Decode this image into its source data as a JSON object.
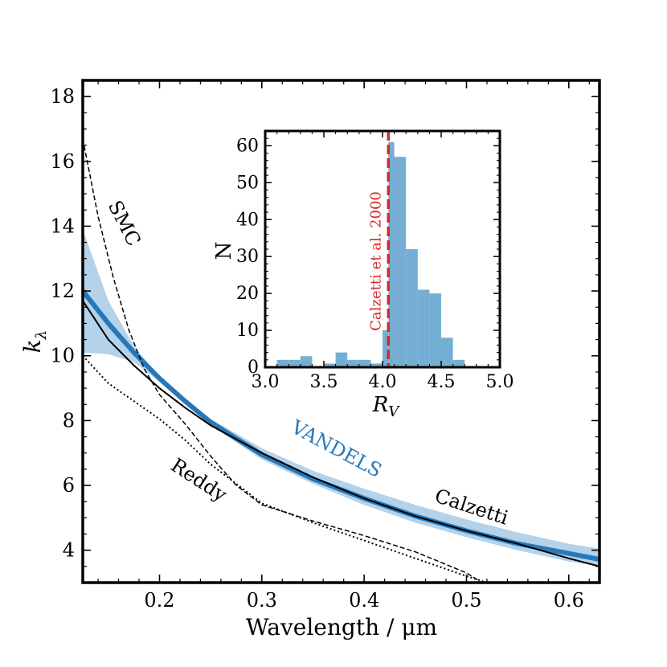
{
  "chart_data": [
    {
      "type": "line",
      "xlabel": "Wavelength / μm",
      "ylabel": "k_λ",
      "xlim": [
        0.125,
        0.63
      ],
      "ylim": [
        3.0,
        18.5
      ],
      "xticks": [
        0.2,
        0.3,
        0.4,
        0.5,
        0.6
      ],
      "xtick_labels": [
        "0.2",
        "0.3",
        "0.4",
        "0.5",
        "0.6"
      ],
      "yticks": [
        4,
        6,
        8,
        10,
        12,
        14,
        16,
        18
      ],
      "ytick_labels": [
        "4",
        "6",
        "8",
        "10",
        "12",
        "14",
        "16",
        "18"
      ],
      "colors": {
        "vandels": "#2878b8",
        "band": "#b4d2ea",
        "calzetti": "#000000",
        "smc": "#000000",
        "reddy": "#000000",
        "rv_marker": "#d62728",
        "hist": "#75aed3"
      },
      "series": [
        {
          "name": "VANDELS",
          "style": "thick-blue",
          "x": [
            0.125,
            0.15,
            0.175,
            0.2,
            0.225,
            0.25,
            0.3,
            0.35,
            0.4,
            0.45,
            0.5,
            0.55,
            0.6,
            0.63
          ],
          "y": [
            12.0,
            11.0,
            10.1,
            9.3,
            8.6,
            7.95,
            6.95,
            6.2,
            5.6,
            5.05,
            4.6,
            4.2,
            3.9,
            3.72
          ],
          "band_upper": [
            13.9,
            11.7,
            10.3,
            9.35,
            8.65,
            8.05,
            7.15,
            6.45,
            5.9,
            5.4,
            4.95,
            4.55,
            4.2,
            4.05
          ],
          "band_lower": [
            10.1,
            10.05,
            9.8,
            9.2,
            8.55,
            7.85,
            6.8,
            6.05,
            5.4,
            4.85,
            4.4,
            4.0,
            3.65,
            3.5
          ]
        },
        {
          "name": "Calzetti",
          "style": "solid-black",
          "x": [
            0.125,
            0.15,
            0.175,
            0.2,
            0.225,
            0.25,
            0.3,
            0.35,
            0.4,
            0.45,
            0.5,
            0.55,
            0.6,
            0.63
          ],
          "y": [
            11.7,
            10.5,
            9.7,
            9.0,
            8.4,
            7.85,
            7.0,
            6.25,
            5.6,
            5.05,
            4.6,
            4.2,
            3.75,
            3.5
          ]
        },
        {
          "name": "SMC",
          "style": "dashed-black",
          "x": [
            0.125,
            0.14,
            0.155,
            0.17,
            0.185,
            0.2,
            0.225,
            0.25,
            0.275,
            0.3,
            0.35,
            0.4,
            0.45,
            0.5,
            0.515
          ],
          "y": [
            16.7,
            14.3,
            12.4,
            10.8,
            9.6,
            8.8,
            7.9,
            6.9,
            6.0,
            5.4,
            4.9,
            4.45,
            3.95,
            3.3,
            3.0
          ]
        },
        {
          "name": "Reddy",
          "style": "dotted-black",
          "x": [
            0.125,
            0.15,
            0.175,
            0.2,
            0.225,
            0.25,
            0.3,
            0.35,
            0.4,
            0.45,
            0.5,
            0.52
          ],
          "y": [
            10.0,
            9.15,
            8.6,
            8.05,
            7.4,
            6.65,
            5.45,
            4.85,
            4.3,
            3.75,
            3.2,
            3.0
          ]
        }
      ],
      "labels": [
        {
          "text": "SMC",
          "x": 0.16,
          "y": 14.0,
          "angle": 63,
          "color": "#000000"
        },
        {
          "text": "VANDELS",
          "x": 0.37,
          "y": 6.95,
          "angle": 28,
          "color": "#2878b8"
        },
        {
          "text": "Calzetti",
          "x": 0.503,
          "y": 5.15,
          "angle": 18,
          "color": "#000000"
        },
        {
          "text": "Reddy",
          "x": 0.235,
          "y": 6.0,
          "angle": 33,
          "color": "#000000"
        }
      ]
    },
    {
      "type": "bar",
      "subtype": "histogram",
      "xlabel": "R_V",
      "ylabel": "N",
      "xlim": [
        3.0,
        5.0
      ],
      "ylim": [
        0,
        64
      ],
      "xticks": [
        3.0,
        3.5,
        4.0,
        4.5,
        5.0
      ],
      "xtick_labels": [
        "3.0",
        "3.5",
        "4.0",
        "4.5",
        "5.0"
      ],
      "yticks": [
        0,
        10,
        20,
        30,
        40,
        50,
        60
      ],
      "ytick_labels": [
        "0",
        "10",
        "20",
        "30",
        "40",
        "50",
        "60"
      ],
      "bin_edges": [
        3.1,
        3.2,
        3.3,
        3.4,
        3.5,
        3.6,
        3.7,
        3.8,
        3.9,
        4.0,
        4.05,
        4.1,
        4.2,
        4.3,
        4.4,
        4.5,
        4.6,
        4.7
      ],
      "values": [
        2,
        2,
        3,
        0,
        1,
        4,
        2,
        2,
        1,
        10,
        61,
        57,
        32,
        21,
        20,
        8,
        2
      ],
      "reference_line": {
        "x": 4.05,
        "label": "Calzetti et al. 2000"
      }
    }
  ]
}
